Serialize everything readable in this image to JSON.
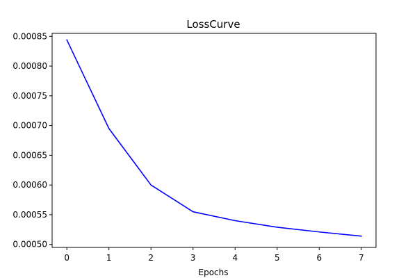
{
  "chart_data": {
    "type": "line",
    "title": "LossCurve",
    "xlabel": "Epochs",
    "ylabel": "",
    "xlim": [
      -0.35,
      7.35
    ],
    "ylim": [
      0.000495,
      0.000855
    ],
    "x_ticks": [
      0,
      1,
      2,
      3,
      4,
      5,
      6,
      7
    ],
    "y_ticks": [
      0.0005,
      0.00055,
      0.0006,
      0.00065,
      0.0007,
      0.00075,
      0.0008,
      0.00085
    ],
    "y_tick_labels": [
      "0.00050",
      "0.00055",
      "0.00060",
      "0.00065",
      "0.00070",
      "0.00075",
      "0.00080",
      "0.00085"
    ],
    "grid": false,
    "series": [
      {
        "color": "#0000ff",
        "x": [
          0,
          1,
          2,
          3,
          4,
          5,
          6,
          7
        ],
        "y": [
          0.000844,
          0.000695,
          0.0006,
          0.000555,
          0.00054,
          0.000529,
          0.000521,
          0.000514
        ]
      }
    ]
  }
}
